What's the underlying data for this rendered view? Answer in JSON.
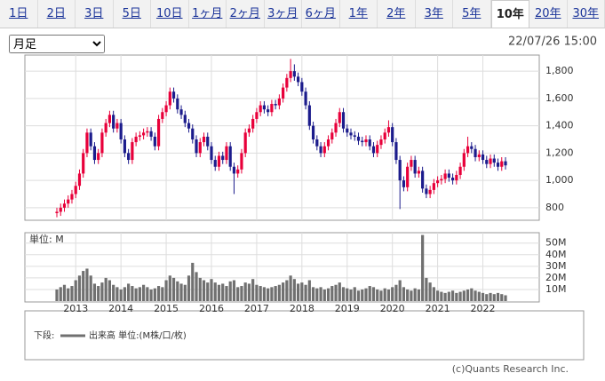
{
  "tabs": [
    "1日",
    "2日",
    "3日",
    "5日",
    "10日",
    "1ヶ月",
    "2ヶ月",
    "3ヶ月",
    "6ヶ月",
    "1年",
    "2年",
    "3年",
    "5年",
    "10年",
    "20年",
    "30年"
  ],
  "active_tab": 13,
  "select": "月足",
  "timestamp": "22/07/26 15:00",
  "chart_data": [
    {
      "type": "candlestick",
      "xlim": [
        2012.5833,
        2022.5
      ],
      "xticks": [
        2013,
        2014,
        2015,
        2016,
        2017,
        2018,
        2019,
        2020,
        2021,
        2022
      ],
      "ylim": [
        708,
        1918
      ],
      "yticks": [
        {
          "value": 800,
          "label": "800"
        },
        {
          "value": 1000,
          "label": "1,000"
        },
        {
          "value": 1200,
          "label": "1,200"
        },
        {
          "value": 1400,
          "label": "1,400"
        },
        {
          "value": 1600,
          "label": "1,600"
        },
        {
          "value": 1800,
          "label": "1,800"
        }
      ],
      "up_color": "#e8003a",
      "down_color": "#1c1c8c",
      "ohlc": [
        [
          760,
          800,
          730,
          770
        ],
        [
          770,
          830,
          740,
          800
        ],
        [
          800,
          860,
          770,
          830
        ],
        [
          830,
          890,
          800,
          860
        ],
        [
          860,
          930,
          830,
          900
        ],
        [
          900,
          990,
          870,
          960
        ],
        [
          960,
          1080,
          930,
          1050
        ],
        [
          1050,
          1230,
          1020,
          1200
        ],
        [
          1200,
          1380,
          1170,
          1350
        ],
        [
          1350,
          1380,
          1220,
          1250
        ],
        [
          1250,
          1280,
          1120,
          1150
        ],
        [
          1150,
          1230,
          1120,
          1200
        ],
        [
          1200,
          1380,
          1170,
          1350
        ],
        [
          1350,
          1450,
          1320,
          1420
        ],
        [
          1420,
          1510,
          1390,
          1480
        ],
        [
          1480,
          1510,
          1350,
          1380
        ],
        [
          1380,
          1450,
          1350,
          1420
        ],
        [
          1420,
          1450,
          1270,
          1300
        ],
        [
          1300,
          1330,
          1170,
          1200
        ],
        [
          1200,
          1230,
          1120,
          1150
        ],
        [
          1150,
          1310,
          1120,
          1280
        ],
        [
          1280,
          1350,
          1250,
          1320
        ],
        [
          1320,
          1360,
          1290,
          1330
        ],
        [
          1330,
          1380,
          1300,
          1350
        ],
        [
          1350,
          1390,
          1320,
          1360
        ],
        [
          1360,
          1390,
          1290,
          1320
        ],
        [
          1320,
          1350,
          1220,
          1250
        ],
        [
          1250,
          1480,
          1220,
          1450
        ],
        [
          1450,
          1530,
          1420,
          1500
        ],
        [
          1500,
          1580,
          1470,
          1550
        ],
        [
          1550,
          1680,
          1520,
          1650
        ],
        [
          1650,
          1680,
          1570,
          1600
        ],
        [
          1600,
          1630,
          1490,
          1520
        ],
        [
          1520,
          1550,
          1450,
          1480
        ],
        [
          1480,
          1510,
          1390,
          1420
        ],
        [
          1420,
          1450,
          1350,
          1380
        ],
        [
          1380,
          1410,
          1270,
          1300
        ],
        [
          1300,
          1330,
          1170,
          1200
        ],
        [
          1200,
          1310,
          1170,
          1280
        ],
        [
          1280,
          1350,
          1250,
          1320
        ],
        [
          1320,
          1350,
          1220,
          1250
        ],
        [
          1250,
          1280,
          1120,
          1150
        ],
        [
          1150,
          1180,
          1070,
          1100
        ],
        [
          1100,
          1210,
          1070,
          1180
        ],
        [
          1180,
          1210,
          1120,
          1150
        ],
        [
          1150,
          1280,
          1120,
          1250
        ],
        [
          1250,
          1280,
          1070,
          1100
        ],
        [
          1100,
          1130,
          900,
          1050
        ],
        [
          1050,
          1110,
          1020,
          1080
        ],
        [
          1080,
          1230,
          1050,
          1200
        ],
        [
          1200,
          1380,
          1170,
          1350
        ],
        [
          1350,
          1410,
          1320,
          1380
        ],
        [
          1380,
          1480,
          1350,
          1450
        ],
        [
          1450,
          1530,
          1420,
          1500
        ],
        [
          1500,
          1580,
          1470,
          1550
        ],
        [
          1550,
          1580,
          1490,
          1520
        ],
        [
          1520,
          1550,
          1470,
          1500
        ],
        [
          1500,
          1590,
          1470,
          1560
        ],
        [
          1560,
          1590,
          1520,
          1550
        ],
        [
          1550,
          1630,
          1520,
          1600
        ],
        [
          1600,
          1710,
          1570,
          1680
        ],
        [
          1680,
          1780,
          1650,
          1750
        ],
        [
          1750,
          1890,
          1720,
          1800
        ],
        [
          1800,
          1850,
          1730,
          1760
        ],
        [
          1760,
          1790,
          1690,
          1720
        ],
        [
          1720,
          1750,
          1620,
          1650
        ],
        [
          1650,
          1680,
          1520,
          1550
        ],
        [
          1550,
          1580,
          1370,
          1400
        ],
        [
          1400,
          1430,
          1270,
          1300
        ],
        [
          1300,
          1330,
          1220,
          1250
        ],
        [
          1250,
          1280,
          1170,
          1200
        ],
        [
          1200,
          1280,
          1170,
          1250
        ],
        [
          1250,
          1330,
          1220,
          1300
        ],
        [
          1300,
          1380,
          1270,
          1350
        ],
        [
          1350,
          1450,
          1320,
          1420
        ],
        [
          1420,
          1530,
          1390,
          1500
        ],
        [
          1500,
          1530,
          1350,
          1380
        ],
        [
          1380,
          1410,
          1320,
          1350
        ],
        [
          1350,
          1380,
          1300,
          1330
        ],
        [
          1330,
          1360,
          1290,
          1320
        ],
        [
          1320,
          1350,
          1260,
          1290
        ],
        [
          1290,
          1320,
          1250,
          1280
        ],
        [
          1280,
          1330,
          1250,
          1300
        ],
        [
          1300,
          1330,
          1220,
          1250
        ],
        [
          1250,
          1280,
          1170,
          1200
        ],
        [
          1200,
          1290,
          1170,
          1260
        ],
        [
          1260,
          1330,
          1230,
          1300
        ],
        [
          1300,
          1380,
          1270,
          1350
        ],
        [
          1350,
          1440,
          1320,
          1390
        ],
        [
          1390,
          1420,
          1250,
          1280
        ],
        [
          1280,
          1310,
          1120,
          1150
        ],
        [
          1150,
          1180,
          790,
          1000
        ],
        [
          1000,
          1030,
          920,
          950
        ],
        [
          950,
          1130,
          920,
          1100
        ],
        [
          1100,
          1180,
          1070,
          1150
        ],
        [
          1150,
          1180,
          1020,
          1050
        ],
        [
          1050,
          1100,
          1020,
          1070
        ],
        [
          1070,
          1100,
          910,
          940
        ],
        [
          940,
          970,
          870,
          900
        ],
        [
          900,
          960,
          870,
          930
        ],
        [
          930,
          1010,
          900,
          980
        ],
        [
          980,
          1030,
          950,
          1000
        ],
        [
          1000,
          1040,
          970,
          1010
        ],
        [
          1010,
          1080,
          980,
          1050
        ],
        [
          1050,
          1080,
          990,
          1020
        ],
        [
          1020,
          1050,
          970,
          1000
        ],
        [
          1000,
          1070,
          970,
          1040
        ],
        [
          1040,
          1130,
          1010,
          1100
        ],
        [
          1100,
          1230,
          1070,
          1200
        ],
        [
          1200,
          1320,
          1170,
          1250
        ],
        [
          1250,
          1280,
          1200,
          1230
        ],
        [
          1230,
          1260,
          1140,
          1170
        ],
        [
          1170,
          1220,
          1140,
          1190
        ],
        [
          1190,
          1220,
          1120,
          1150
        ],
        [
          1150,
          1180,
          1090,
          1120
        ],
        [
          1120,
          1190,
          1090,
          1160
        ],
        [
          1160,
          1190,
          1100,
          1130
        ],
        [
          1130,
          1160,
          1070,
          1100
        ],
        [
          1100,
          1170,
          1070,
          1140
        ],
        [
          1140,
          1170,
          1080,
          1110
        ]
      ]
    },
    {
      "type": "bar",
      "label": "単位: M",
      "xlim": [
        2012.5833,
        2022.5
      ],
      "xticks": [
        2013,
        2014,
        2015,
        2016,
        2017,
        2018,
        2019,
        2020,
        2021,
        2022
      ],
      "ylim": [
        0,
        59
      ],
      "yticks": [
        {
          "value": 10,
          "label": "10M"
        },
        {
          "value": 20,
          "label": "20M"
        },
        {
          "value": 30,
          "label": "30M"
        },
        {
          "value": 40,
          "label": "40M"
        },
        {
          "value": 50,
          "label": "50M"
        }
      ],
      "color": "#707070",
      "values": [
        10,
        12,
        14,
        11,
        13,
        18,
        22,
        26,
        28,
        22,
        15,
        13,
        16,
        20,
        18,
        14,
        12,
        10,
        12,
        15,
        13,
        11,
        12,
        14,
        12,
        10,
        11,
        13,
        12,
        18,
        22,
        20,
        17,
        15,
        14,
        22,
        33,
        25,
        20,
        18,
        16,
        19,
        16,
        14,
        15,
        13,
        17,
        18,
        12,
        13,
        16,
        15,
        19,
        14,
        13,
        12,
        11,
        12,
        13,
        14,
        16,
        18,
        22,
        19,
        15,
        16,
        14,
        18,
        12,
        11,
        12,
        10,
        11,
        13,
        14,
        16,
        12,
        11,
        10,
        12,
        9,
        10,
        11,
        13,
        12,
        10,
        9,
        11,
        10,
        12,
        14,
        18,
        12,
        10,
        9,
        11,
        10,
        57,
        20,
        16,
        12,
        9,
        8,
        7,
        8,
        9,
        7,
        8,
        9,
        10,
        11,
        9,
        8,
        7,
        6,
        7,
        6,
        7,
        6,
        5
      ]
    }
  ],
  "legend": {
    "prefix": "下段:",
    "label": "出来高 単位:(M株/口/枚)"
  },
  "copyright": "(c)Quants Research Inc."
}
